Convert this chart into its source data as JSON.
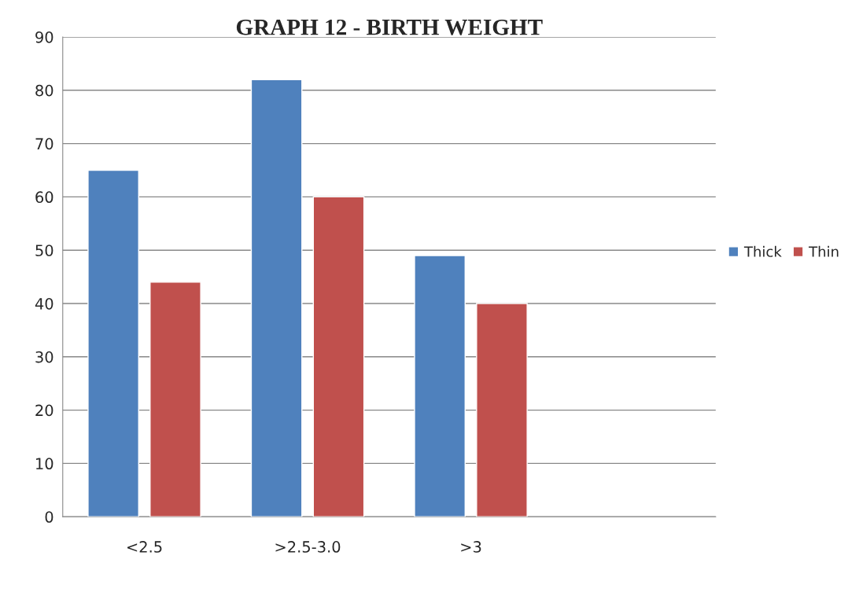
{
  "chart_data": {
    "type": "bar",
    "title": "GRAPH 12 - BIRTH WEIGHT",
    "categories": [
      "<2.5",
      ">2.5-3.0",
      ">3",
      null
    ],
    "series": [
      {
        "name": "Thick",
        "color": "#4f81bd",
        "values": [
          65,
          82,
          49,
          null
        ]
      },
      {
        "name": "Thin",
        "color": "#c0504d",
        "values": [
          44,
          60,
          40,
          null
        ]
      }
    ],
    "ylim": [
      0,
      90
    ],
    "yticks": [
      0,
      10,
      20,
      30,
      40,
      50,
      60,
      70,
      80,
      90
    ],
    "grid": "y",
    "legend": "right"
  }
}
